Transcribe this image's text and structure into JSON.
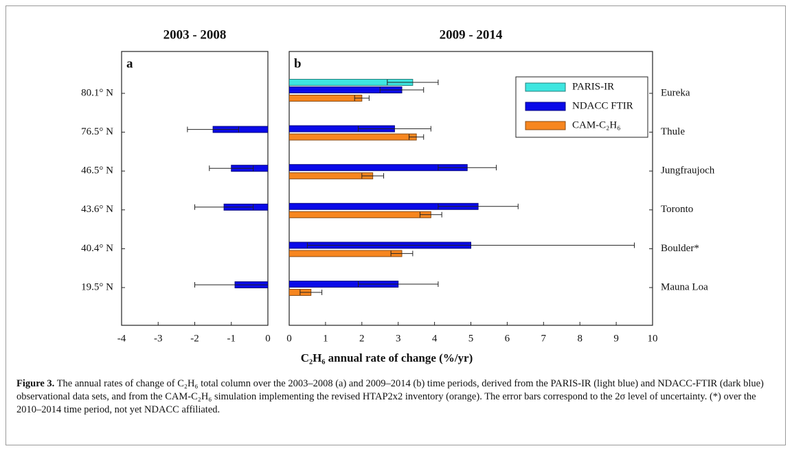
{
  "figure": {
    "xlabel": "C₂H₆ annual rate of change (%/yr)",
    "caption_label": "Figure 3.",
    "caption_text": "The annual rates of change of C₂H₆ total column over the 2003–2008 (a) and 2009–2014 (b) time periods, derived from the PARIS-IR (light blue) and NDACC-FTIR (dark blue) observational data sets, and from the CAM-C₂H₆ simulation implementing the revised HTAP2x2 inventory (orange). The error bars correspond to the 2σ level of uncertainty. (*) over the 2010–2014 time period, not yet NDACC affiliated."
  },
  "chart_data": [
    {
      "type": "hbar",
      "title": "2003 - 2008",
      "panel": "a",
      "categories": [
        "80.1° N",
        "76.5° N",
        "46.5° N",
        "43.6° N",
        "40.4° N",
        "19.5° N"
      ],
      "series": [
        {
          "name": "NDACC FTIR",
          "color": "#0a0ae8",
          "values": [
            null,
            -1.5,
            -1.0,
            -1.2,
            null,
            -0.9
          ],
          "errors": [
            null,
            0.7,
            0.6,
            0.8,
            null,
            1.1
          ]
        }
      ],
      "xlim": [
        -4,
        0
      ],
      "xticks": [
        -4,
        -3,
        -2,
        -1,
        0
      ]
    },
    {
      "type": "hbar",
      "title": "2009 - 2014",
      "panel": "b",
      "categories": [
        "Eureka",
        "Thule",
        "Jungfraujoch",
        "Toronto",
        "Boulder*",
        "Mauna Loa"
      ],
      "series": [
        {
          "name": "PARIS-IR",
          "color": "#3ee6e0",
          "values": [
            3.4,
            null,
            null,
            null,
            null,
            null
          ],
          "errors": [
            0.7,
            null,
            null,
            null,
            null,
            null
          ]
        },
        {
          "name": "NDACC FTIR",
          "color": "#0a0ae8",
          "values": [
            3.1,
            2.9,
            4.9,
            5.2,
            5.0,
            3.0
          ],
          "errors": [
            0.6,
            1.0,
            0.8,
            1.1,
            4.5,
            1.1
          ]
        },
        {
          "name": "CAM-C₂H₆",
          "color": "#f7861f",
          "values": [
            2.0,
            3.5,
            2.3,
            3.9,
            3.1,
            0.6
          ],
          "errors": [
            0.2,
            0.2,
            0.3,
            0.3,
            0.3,
            0.3
          ]
        }
      ],
      "xlim": [
        0,
        10
      ],
      "xticks": [
        0,
        1,
        2,
        3,
        4,
        5,
        6,
        7,
        8,
        9,
        10
      ],
      "legend": "upper right"
    }
  ]
}
